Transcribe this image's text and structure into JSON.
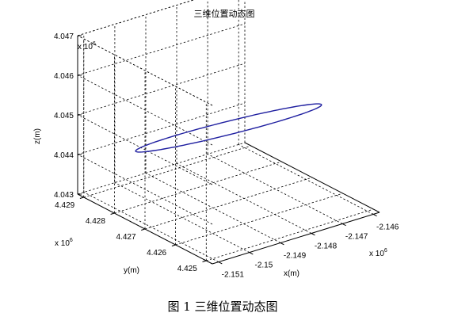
{
  "chart_data": {
    "type": "line",
    "projection": "3d",
    "title": "三维位置动态图",
    "xlabel": "x(m)",
    "ylabel": "y(m)",
    "zlabel": "z(m)",
    "x_exponent": {
      "base": "x 10",
      "power": "6"
    },
    "y_exponent": {
      "base": "x 10",
      "power": "6"
    },
    "z_exponent": {
      "base": "x 10",
      "power": "6"
    },
    "xlim": [
      -2.1512,
      -2.1458
    ],
    "ylim": [
      4.4248,
      4.4292
    ],
    "zlim": [
      4.043,
      4.047
    ],
    "x_ticks": [
      "-2.151",
      "-2.15",
      "-2.149",
      "-2.148",
      "-2.147",
      "-2.146"
    ],
    "x_tick_values": [
      -2.151,
      -2.15,
      -2.149,
      -2.148,
      -2.147,
      -2.146
    ],
    "y_ticks": [
      "4.425",
      "4.426",
      "4.427",
      "4.428",
      "4.429"
    ],
    "y_tick_values": [
      4.425,
      4.426,
      4.427,
      4.428,
      4.429
    ],
    "z_ticks": [
      "4.043",
      "4.044",
      "4.045",
      "4.046",
      "4.047"
    ],
    "z_tick_values": [
      4.043,
      4.044,
      4.045,
      4.046,
      4.047
    ],
    "grid": true,
    "series": [
      {
        "color": "#1f1fa0",
        "center": [
          -2.1485,
          4.427,
          4.0449
        ],
        "axis_u": [
          0.00152,
          -0.0015,
          0.00082
        ],
        "axis_v": [
          3e-05,
          8e-05,
          0.000125
        ],
        "points": 120
      }
    ]
  },
  "caption": "图 1  三维位置动态图"
}
